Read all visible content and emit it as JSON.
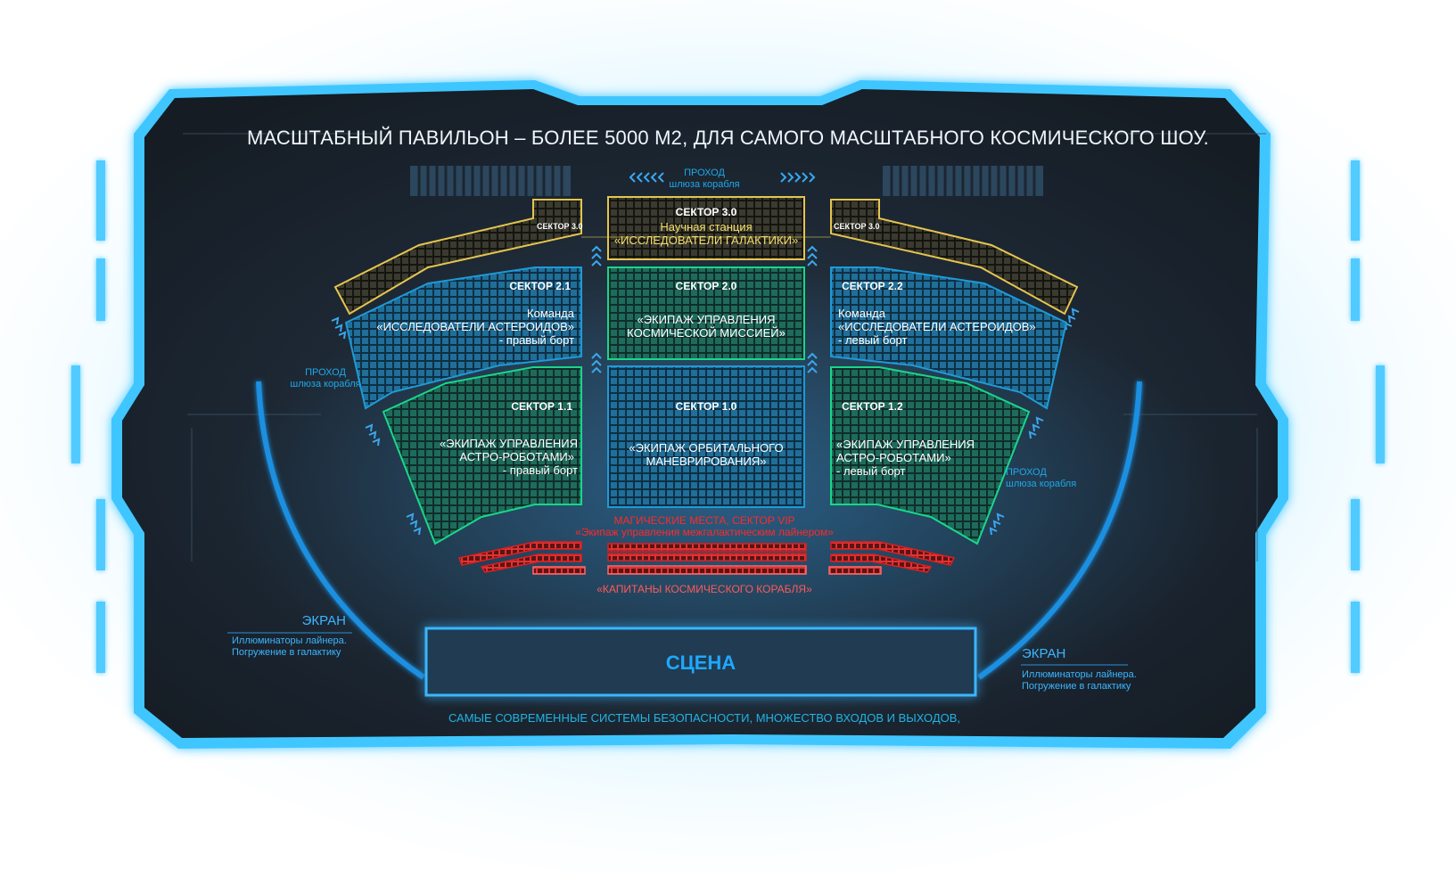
{
  "title": "МАСШТАБНЫЙ ПАВИЛЬОН – БОЛЕЕ 5000 М2,  ДЛЯ САМОГО МАСШТАБНОГО КОСМИЧЕСКОГО ШОУ.",
  "passages": {
    "top": {
      "line1": "ПРОХОД",
      "line2": "шлюза корабля"
    },
    "left": {
      "line1": "ПРОХОД",
      "line2": "шлюза корабля"
    },
    "right": {
      "line1": "ПРОХОД",
      "line2": "шлюза корабля"
    }
  },
  "sectors": {
    "s30": {
      "title": "СЕКТОР 3.0",
      "line1": "Научная станция",
      "line2": "«ИССЛЕДОВАТЕЛИ ГАЛАКТИКИ»",
      "side_left": "СЕКТОР 3.0",
      "side_right": "СЕКТОР 3.0"
    },
    "s21": {
      "title": "СЕКТОР 2.1",
      "line1": "Команда",
      "line2": "«ИССЛЕДОВАТЕЛИ АСТЕРОИДОВ»",
      "line3": "- правый борт"
    },
    "s20": {
      "title": "СЕКТОР 2.0",
      "line1": "«ЭКИПАЖ УПРАВЛЕНИЯ",
      "line2": "КОСМИЧЕСКОЙ МИССИЕЙ»"
    },
    "s22": {
      "title": "СЕКТОР 2.2",
      "line1": "Команда",
      "line2": "«ИССЛЕДОВАТЕЛИ АСТЕРОИДОВ»",
      "line3": "- левый борт"
    },
    "s11": {
      "title": "СЕКТОР 1.1",
      "line1": "«ЭКИПАЖ УПРАВЛЕНИЯ",
      "line2": "АСТРО-РОБОТАМИ»",
      "line3": "- правый борт"
    },
    "s10": {
      "title": "СЕКТОР 1.0",
      "line1": "«ЭКИПАЖ ОРБИТАЛЬНОГО",
      "line2": "МАНЕВРИРОВАНИЯ»"
    },
    "s12": {
      "title": "СЕКТОР 1.2",
      "line1": "«ЭКИПАЖ УПРАВЛЕНИЯ",
      "line2": "АСТРО-РОБОТАМИ»",
      "line3": "- левый борт"
    }
  },
  "vip": {
    "line1": "МАГИЧЕСКИЕ МЕСТА, СЕКТОР VIP",
    "line2": "«Экипаж управления межгалактическим лайнером»"
  },
  "captains": "«КАПИТАНЫ КОСМИЧЕСКОГО КОРАБЛЯ»",
  "screens": {
    "left": {
      "label": "ЭКРАН",
      "line1": "Иллюминаторы лайнера.",
      "line2": "Погружение в галактику"
    },
    "right": {
      "label": "ЭКРАН",
      "line1": "Иллюминаторы лайнера.",
      "line2": "Погружение в галактику"
    }
  },
  "stage": "СЦЕНА",
  "footer": "САМЫЕ СОВРЕМЕННЫЕ СИСТЕМЫ БЕЗОПАСНОСТИ,  МНОЖЕСТВО ВХОДОВ И ВЫХОДОВ,",
  "colors": {
    "frame_glow": "#3fc6ff",
    "panel": "#1c2631",
    "sector_gold": "#e4c54e",
    "sector_blue": "#1e9ad8",
    "sector_green": "#19d68a",
    "vip_red": "#e01e1e",
    "stage": "#1c9ff0"
  }
}
